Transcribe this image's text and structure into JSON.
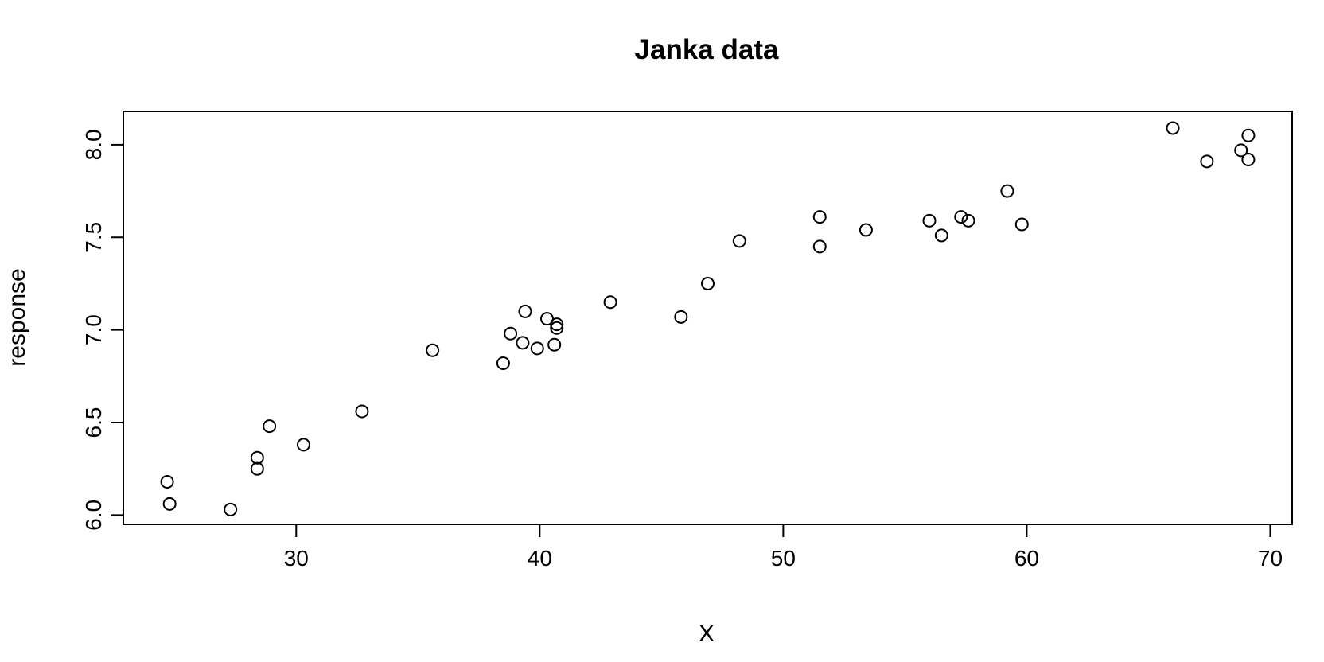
{
  "chart_data": {
    "type": "scatter",
    "title": "Janka data",
    "xlabel": "X",
    "ylabel": "response",
    "xlim": [
      22.9,
      70.9
    ],
    "ylim": [
      5.95,
      8.18
    ],
    "xticks": [
      30,
      40,
      50,
      60,
      70
    ],
    "yticks": [
      6.0,
      6.5,
      7.0,
      7.5,
      8.0
    ],
    "xtick_labels": [
      "30",
      "40",
      "50",
      "60",
      "70"
    ],
    "ytick_labels": [
      "6.0",
      "6.5",
      "7.0",
      "7.5",
      "8.0"
    ],
    "grid": false,
    "marker": "open-circle",
    "points": [
      {
        "x": 24.7,
        "y": 6.18
      },
      {
        "x": 24.8,
        "y": 6.06
      },
      {
        "x": 27.3,
        "y": 6.03
      },
      {
        "x": 28.4,
        "y": 6.31
      },
      {
        "x": 28.4,
        "y": 6.25
      },
      {
        "x": 28.9,
        "y": 6.48
      },
      {
        "x": 30.3,
        "y": 6.38
      },
      {
        "x": 32.7,
        "y": 6.56
      },
      {
        "x": 35.6,
        "y": 6.89
      },
      {
        "x": 38.5,
        "y": 6.82
      },
      {
        "x": 38.8,
        "y": 6.98
      },
      {
        "x": 39.3,
        "y": 6.93
      },
      {
        "x": 39.4,
        "y": 7.1
      },
      {
        "x": 39.9,
        "y": 6.9
      },
      {
        "x": 40.3,
        "y": 7.06
      },
      {
        "x": 40.6,
        "y": 6.92
      },
      {
        "x": 40.7,
        "y": 7.03
      },
      {
        "x": 40.7,
        "y": 7.01
      },
      {
        "x": 42.9,
        "y": 7.15
      },
      {
        "x": 45.8,
        "y": 7.07
      },
      {
        "x": 46.9,
        "y": 7.25
      },
      {
        "x": 48.2,
        "y": 7.48
      },
      {
        "x": 51.5,
        "y": 7.61
      },
      {
        "x": 51.5,
        "y": 7.45
      },
      {
        "x": 53.4,
        "y": 7.54
      },
      {
        "x": 56.0,
        "y": 7.59
      },
      {
        "x": 56.5,
        "y": 7.51
      },
      {
        "x": 57.3,
        "y": 7.61
      },
      {
        "x": 57.6,
        "y": 7.59
      },
      {
        "x": 59.2,
        "y": 7.75
      },
      {
        "x": 59.8,
        "y": 7.57
      },
      {
        "x": 66.0,
        "y": 8.09
      },
      {
        "x": 67.4,
        "y": 7.91
      },
      {
        "x": 68.8,
        "y": 7.97
      },
      {
        "x": 69.1,
        "y": 8.05
      },
      {
        "x": 69.1,
        "y": 7.92
      }
    ]
  }
}
